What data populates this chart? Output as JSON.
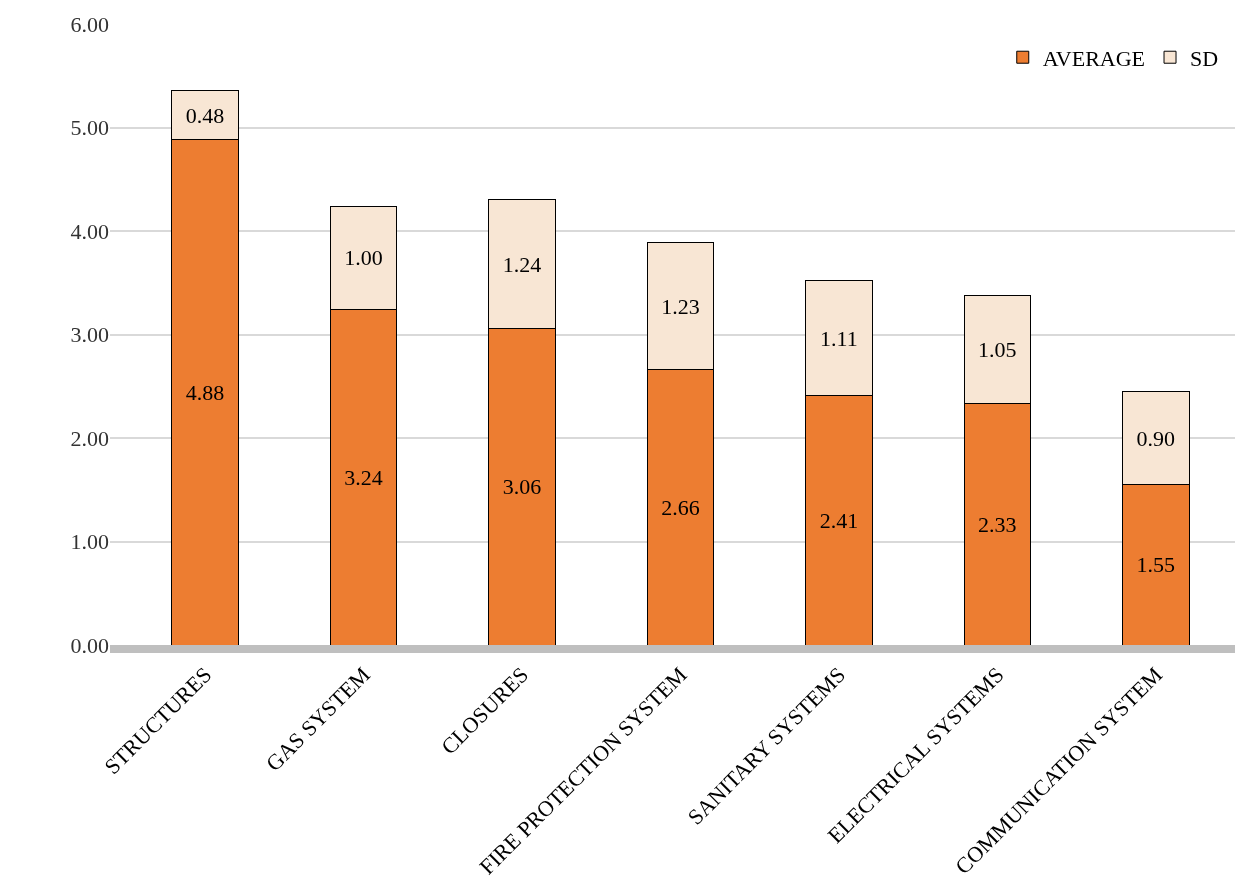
{
  "chart_data": {
    "type": "bar",
    "stacked": true,
    "grid": "y",
    "legend": "top right",
    "categories": [
      "STRUCTURES",
      "GAS SYSTEM",
      "CLOSURES",
      "FIRE PROTECTION SYSTEM",
      "SANITARY SYSTEMS",
      "ELECTRICAL SYSTEMS",
      "COMMUNICATION SYSTEM"
    ],
    "series": [
      {
        "name": "AVERAGE",
        "color": "#ed7d31",
        "values": [
          4.88,
          3.24,
          3.06,
          2.66,
          2.41,
          2.33,
          1.55
        ],
        "value_labels": [
          "4.88",
          "3.24",
          "3.06",
          "2.66",
          "2.41",
          "2.33",
          "1.55"
        ]
      },
      {
        "name": "SD",
        "color": "#f8e6d4",
        "values": [
          0.48,
          1.0,
          1.24,
          1.23,
          1.11,
          1.05,
          0.9
        ],
        "value_labels": [
          "0.48",
          "1.00",
          "1.24",
          "1.23",
          "1.11",
          "1.05",
          "0.90"
        ]
      }
    ],
    "ylim": [
      0,
      6
    ],
    "yticks": [
      {
        "value": 0,
        "label": "0.00"
      },
      {
        "value": 1,
        "label": "1.00"
      },
      {
        "value": 2,
        "label": "2.00"
      },
      {
        "value": 3,
        "label": "3.00"
      },
      {
        "value": 4,
        "label": "4.00"
      },
      {
        "value": 5,
        "label": "5.00"
      },
      {
        "value": 6,
        "label": "6.00"
      }
    ]
  }
}
